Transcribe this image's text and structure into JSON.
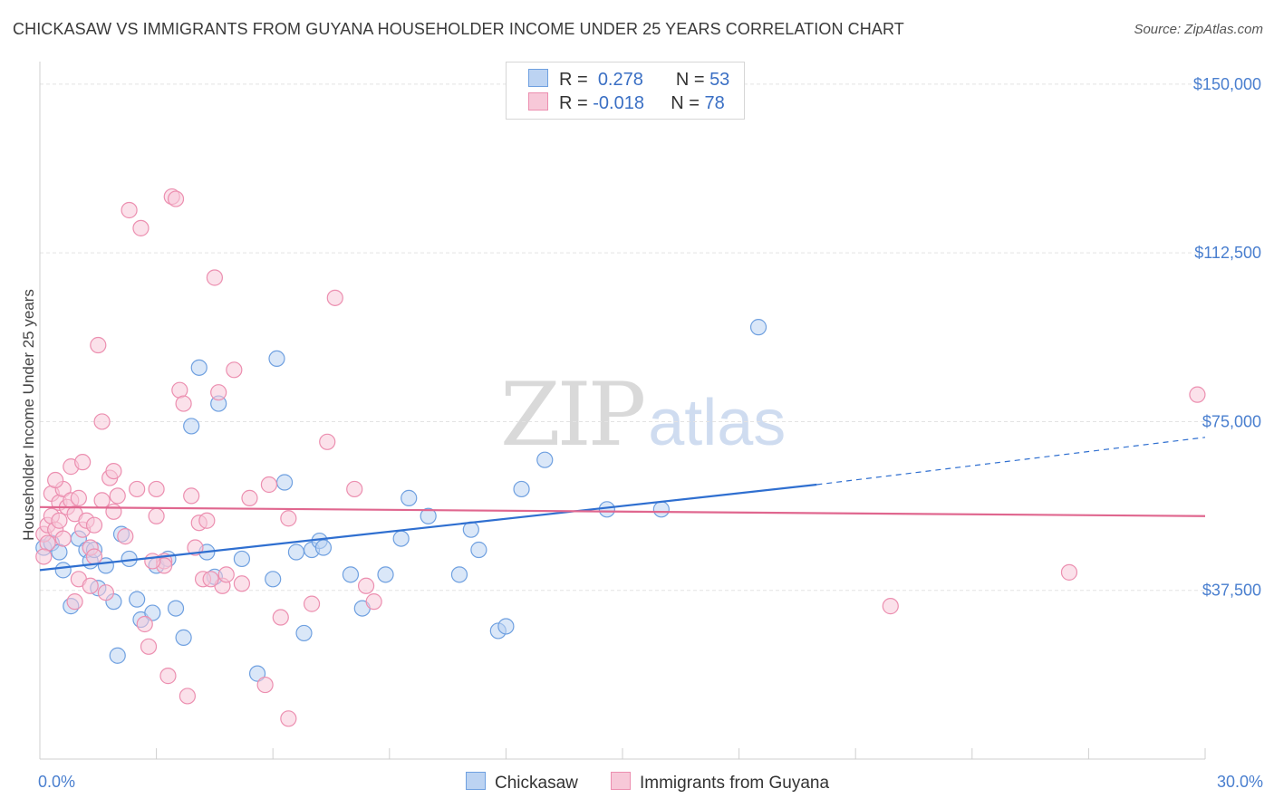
{
  "title": "CHICKASAW VS IMMIGRANTS FROM GUYANA HOUSEHOLDER INCOME UNDER 25 YEARS CORRELATION CHART",
  "source": "Source: ZipAtlas.com",
  "watermark": {
    "zip": "ZIP",
    "atlas": "atlas"
  },
  "legend_stats": [
    {
      "r_label": "R = ",
      "r_value": "0.278",
      "n_label": "N = ",
      "n_value": "53"
    },
    {
      "r_label": "R = ",
      "r_value": "-0.018",
      "n_label": "N = ",
      "n_value": "78"
    }
  ],
  "chart_data": {
    "type": "scatter",
    "ylabel": "Householder Income Under 25 years",
    "xlim": [
      0,
      30
    ],
    "ylim": [
      0,
      153000
    ],
    "x_tick_labels": [
      "0.0%",
      "30.0%"
    ],
    "y_ticks": [
      37500,
      75000,
      112500,
      150000
    ],
    "y_tick_labels": [
      "$37,500",
      "$75,000",
      "$112,500",
      "$150,000"
    ],
    "legend_position": "bottom",
    "grid": true,
    "series": [
      {
        "name": "Chickasaw",
        "color": "#6fa0e0",
        "fill": "#bcd3f2",
        "trend": {
          "x0": 0,
          "y0": 42000,
          "x1": 20,
          "y1": 61000,
          "dashed_to_x": 30,
          "dashed_to_y": 71500,
          "color": "#2f6fd0"
        },
        "points": [
          [
            0.1,
            47000
          ],
          [
            0.3,
            48000
          ],
          [
            0.5,
            46000
          ],
          [
            0.6,
            42000
          ],
          [
            0.8,
            34000
          ],
          [
            1.0,
            49000
          ],
          [
            1.2,
            46500
          ],
          [
            1.3,
            44000
          ],
          [
            1.5,
            38000
          ],
          [
            1.7,
            43000
          ],
          [
            1.9,
            35000
          ],
          [
            2.1,
            50000
          ],
          [
            2.3,
            44500
          ],
          [
            2.5,
            35500
          ],
          [
            2.6,
            31000
          ],
          [
            2.9,
            32500
          ],
          [
            3.0,
            43000
          ],
          [
            3.3,
            44500
          ],
          [
            3.5,
            33500
          ],
          [
            3.7,
            27000
          ],
          [
            3.9,
            74000
          ],
          [
            4.1,
            87000
          ],
          [
            4.3,
            46000
          ],
          [
            4.5,
            40500
          ],
          [
            4.6,
            79000
          ],
          [
            5.2,
            44500
          ],
          [
            5.6,
            19000
          ],
          [
            6.0,
            40000
          ],
          [
            6.3,
            61500
          ],
          [
            6.1,
            89000
          ],
          [
            6.6,
            46000
          ],
          [
            6.8,
            28000
          ],
          [
            7.0,
            46500
          ],
          [
            7.2,
            48500
          ],
          [
            7.3,
            47000
          ],
          [
            8.0,
            41000
          ],
          [
            8.3,
            33500
          ],
          [
            8.9,
            41000
          ],
          [
            9.3,
            49000
          ],
          [
            9.5,
            58000
          ],
          [
            10.0,
            54000
          ],
          [
            10.8,
            41000
          ],
          [
            11.1,
            51000
          ],
          [
            11.3,
            46500
          ],
          [
            11.8,
            28500
          ],
          [
            12.0,
            29500
          ],
          [
            12.4,
            60000
          ],
          [
            13.0,
            66500
          ],
          [
            14.6,
            55500
          ],
          [
            16.0,
            55500
          ],
          [
            18.5,
            96000
          ],
          [
            2.0,
            23000
          ],
          [
            1.4,
            46500
          ]
        ]
      },
      {
        "name": "Immigrants from Guyana",
        "color": "#ec8fb0",
        "fill": "#f7c8d8",
        "trend": {
          "x0": 0,
          "y0": 56000,
          "x1": 30,
          "y1": 54000,
          "color": "#e0678f"
        },
        "points": [
          [
            0.1,
            50000
          ],
          [
            0.2,
            52000
          ],
          [
            0.2,
            48000
          ],
          [
            0.3,
            54000
          ],
          [
            0.3,
            59000
          ],
          [
            0.4,
            51000
          ],
          [
            0.5,
            57000
          ],
          [
            0.5,
            53000
          ],
          [
            0.6,
            60000
          ],
          [
            0.7,
            56000
          ],
          [
            0.8,
            65000
          ],
          [
            0.8,
            57500
          ],
          [
            0.9,
            54500
          ],
          [
            1.0,
            58000
          ],
          [
            1.0,
            40000
          ],
          [
            1.1,
            51000
          ],
          [
            1.2,
            53000
          ],
          [
            1.3,
            47000
          ],
          [
            1.3,
            38500
          ],
          [
            1.4,
            45000
          ],
          [
            1.5,
            92000
          ],
          [
            1.6,
            57500
          ],
          [
            1.6,
            75000
          ],
          [
            1.7,
            37000
          ],
          [
            1.8,
            62500
          ],
          [
            1.9,
            64000
          ],
          [
            1.9,
            55000
          ],
          [
            2.0,
            58500
          ],
          [
            2.2,
            49500
          ],
          [
            2.3,
            122000
          ],
          [
            2.5,
            60000
          ],
          [
            2.6,
            118000
          ],
          [
            2.7,
            30000
          ],
          [
            2.8,
            25000
          ],
          [
            3.0,
            60000
          ],
          [
            3.0,
            54000
          ],
          [
            3.2,
            44000
          ],
          [
            3.2,
            43000
          ],
          [
            3.3,
            18500
          ],
          [
            3.4,
            125000
          ],
          [
            3.5,
            124500
          ],
          [
            3.6,
            82000
          ],
          [
            3.7,
            79000
          ],
          [
            3.8,
            14000
          ],
          [
            3.9,
            58500
          ],
          [
            4.0,
            47000
          ],
          [
            4.1,
            52500
          ],
          [
            4.2,
            40000
          ],
          [
            4.3,
            53000
          ],
          [
            4.5,
            107000
          ],
          [
            4.6,
            81500
          ],
          [
            4.7,
            38500
          ],
          [
            4.8,
            41000
          ],
          [
            5.0,
            86500
          ],
          [
            5.2,
            39000
          ],
          [
            5.4,
            58000
          ],
          [
            5.8,
            16500
          ],
          [
            6.2,
            31500
          ],
          [
            6.4,
            53500
          ],
          [
            6.4,
            9000
          ],
          [
            7.4,
            70500
          ],
          [
            7.6,
            102500
          ],
          [
            8.1,
            60000
          ],
          [
            8.4,
            38500
          ],
          [
            8.6,
            35000
          ],
          [
            0.1,
            45000
          ],
          [
            0.4,
            62000
          ],
          [
            0.6,
            49000
          ],
          [
            1.1,
            66000
          ],
          [
            1.4,
            52000
          ],
          [
            2.9,
            44000
          ],
          [
            4.4,
            40000
          ],
          [
            5.9,
            61000
          ],
          [
            7.0,
            34500
          ],
          [
            21.9,
            34000
          ],
          [
            26.5,
            41500
          ],
          [
            29.8,
            81000
          ],
          [
            0.9,
            35000
          ]
        ]
      }
    ]
  }
}
